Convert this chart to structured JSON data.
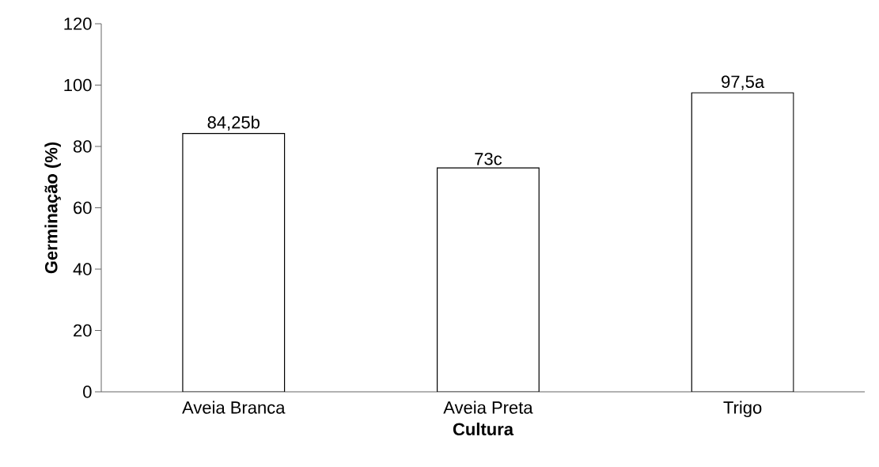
{
  "chart_data": {
    "type": "bar",
    "xlabel": "Cultura",
    "ylabel": "Germinação (%)",
    "categories": [
      "Aveia Branca",
      "Aveia Preta",
      "Trigo"
    ],
    "values": [
      84.25,
      73,
      97.5
    ],
    "value_labels": [
      "84,25b",
      "73c",
      "97,5a"
    ],
    "color": "#ffffff",
    "ylim": [
      0,
      120
    ],
    "yticks": [
      0,
      20,
      40,
      60,
      80,
      100,
      120
    ],
    "grid": false
  }
}
